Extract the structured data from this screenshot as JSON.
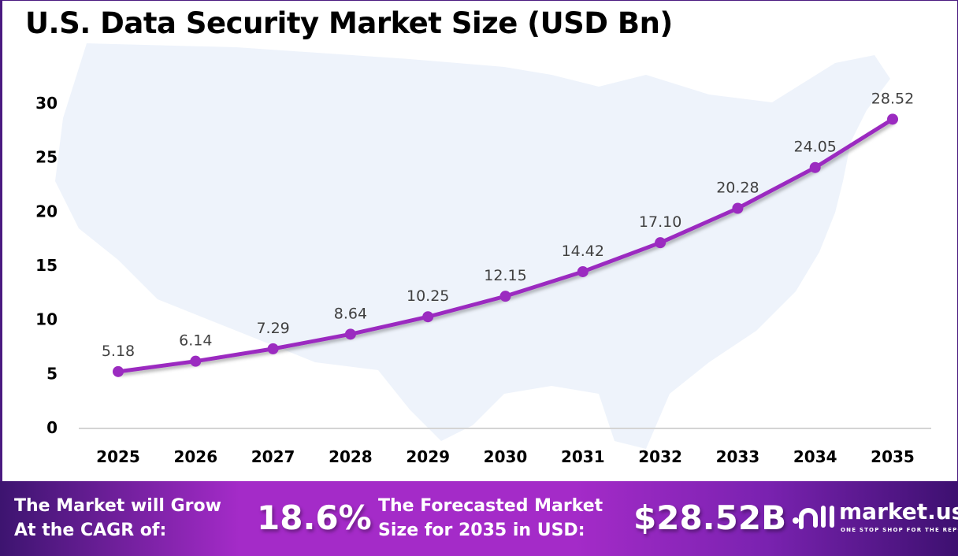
{
  "chart_data": {
    "type": "line",
    "title": "U.S. Data Security Market Size (USD Bn)",
    "categories": [
      "2025",
      "2026",
      "2027",
      "2028",
      "2029",
      "2030",
      "2031",
      "2032",
      "2033",
      "2034",
      "2035"
    ],
    "values": [
      5.18,
      6.14,
      7.29,
      8.64,
      10.25,
      12.15,
      14.42,
      17.1,
      20.28,
      24.05,
      28.52
    ],
    "value_labels": [
      "5.18",
      "6.14",
      "7.29",
      "8.64",
      "10.25",
      "12.15",
      "14.42",
      "17.10",
      "20.28",
      "24.05",
      "28.52"
    ],
    "yticks": [
      "0",
      "5",
      "10",
      "15",
      "20",
      "25",
      "30"
    ],
    "ylim": [
      0,
      30
    ],
    "xlabel": "",
    "ylabel": "",
    "grid": false,
    "line_color": "#9b2bc0",
    "background": "U.S. map silhouette"
  },
  "footer": {
    "cagr_label_line1": "The Market will Grow",
    "cagr_label_line2": "At the CAGR of:",
    "cagr_value": "18.6%",
    "forecast_label_line1": "The Forecasted Market",
    "forecast_label_line2": "Size for 2035 in USD:",
    "forecast_value": "$28.52B",
    "logo_name": "market.us",
    "logo_tagline": "ONE STOP SHOP FOR THE REPORTS"
  }
}
